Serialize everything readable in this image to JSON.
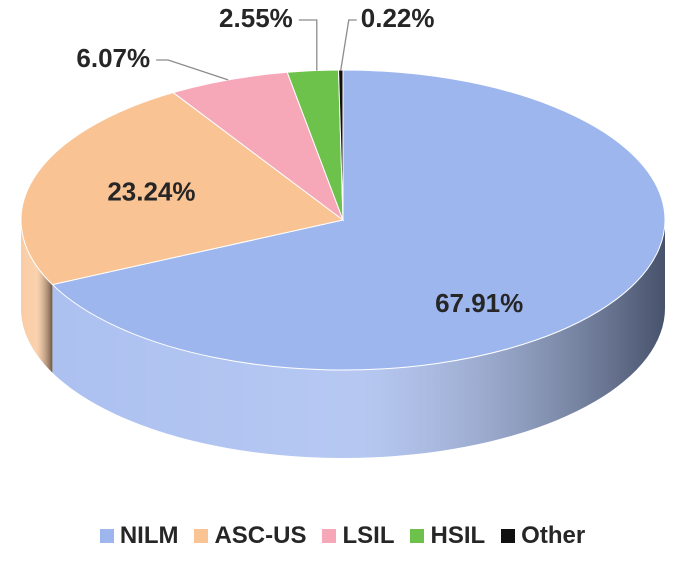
{
  "chart_data": {
    "type": "pie",
    "three_d": true,
    "title": "",
    "categories": [
      "NILM",
      "ASC-US",
      "LSIL",
      "HSIL",
      "Other"
    ],
    "values": [
      67.91,
      23.24,
      6.07,
      2.55,
      0.22
    ],
    "value_labels": [
      "67.91%",
      "23.24%",
      "6.07%",
      "2.55%",
      "0.22%"
    ],
    "colors": [
      "#9EB6EE",
      "#F9C394",
      "#F7A8B8",
      "#6CC24A",
      "#111111"
    ],
    "side_colors": [
      "#5E78B2",
      "#B08050",
      "#B07080",
      "#3E8A2E",
      "#000000"
    ],
    "start_angle_deg": 90,
    "direction": "clockwise",
    "legend_position": "bottom"
  }
}
